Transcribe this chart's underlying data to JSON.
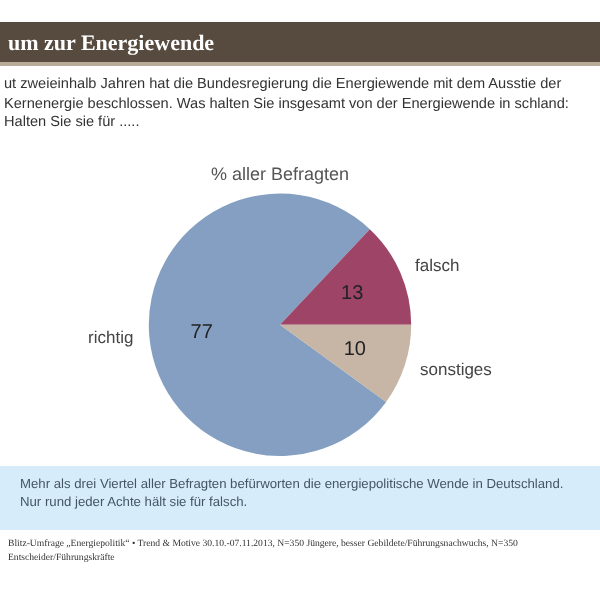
{
  "chart_data": {
    "type": "pie",
    "title": "um zur Energiewende",
    "subtitle": "ut zweieinhalb Jahren hat die Bundesregierung die Energiewende mit dem Ausstie der Kernenergie beschlossen. Was halten Sie insgesamt von der Energiewende in schland: Halten Sie sie für .....",
    "categories": [
      "richtig",
      "falsch",
      "sonstiges"
    ],
    "values": [
      77,
      13,
      10
    ],
    "colors": [
      "#849fc1",
      "#9e4467",
      "#c7b5a6"
    ],
    "data_labels": true,
    "annotations": [
      "% aller Befragten",
      "Mehr als drei Viertel aller Befragten befürworten die energiepolitische Wende in Deutschland. Nur rund jeder Achte hält sie für falsch.",
      "Blitz-Umfrage „Energiepolitik“ • Trend & Motive 30.10.-07.11.2013, N=350 Jüngere, besser Gebildete/Führungsnachwuchs, N=350 Entscheider/Führungskräfte"
    ]
  }
}
